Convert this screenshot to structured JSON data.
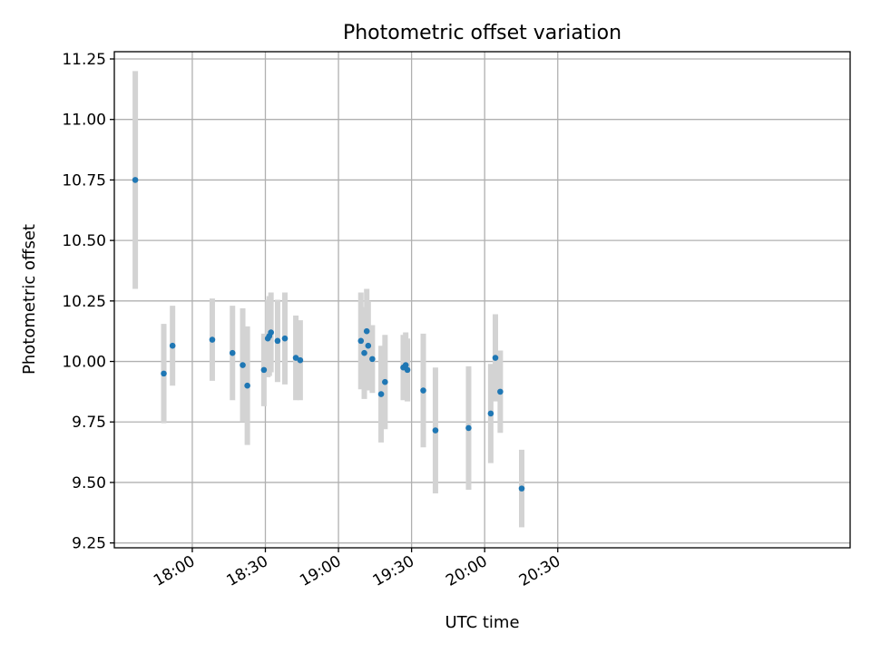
{
  "chart_data": {
    "type": "scatter",
    "title": "Photometric offset variation",
    "xlabel": "UTC time",
    "ylabel": "Photometric offset",
    "xlim_minutes": [
      1048,
      1350
    ],
    "ylim": [
      9.23,
      11.28
    ],
    "grid": true,
    "point_color": "#1f77b4",
    "errorbar_color": "#d3d3d3",
    "x_ticks": [
      {
        "minutes": 1080,
        "label": "18:00"
      },
      {
        "minutes": 1110,
        "label": "18:30"
      },
      {
        "minutes": 1140,
        "label": "19:00"
      },
      {
        "minutes": 1170,
        "label": "19:30"
      },
      {
        "minutes": 1200,
        "label": "20:00"
      },
      {
        "minutes": 1230,
        "label": "20:30"
      }
    ],
    "y_ticks": [
      {
        "value": 9.25,
        "label": "9.25"
      },
      {
        "value": 9.5,
        "label": "9.50"
      },
      {
        "value": 9.75,
        "label": "9.75"
      },
      {
        "value": 10.0,
        "label": "10.00"
      },
      {
        "value": 10.25,
        "label": "10.25"
      },
      {
        "value": 10.5,
        "label": "10.50"
      },
      {
        "value": 10.75,
        "label": "10.75"
      },
      {
        "value": 11.0,
        "label": "11.00"
      },
      {
        "value": 11.25,
        "label": "11.25"
      }
    ],
    "points": [
      {
        "t": 1056.6,
        "y": 10.75,
        "err": 0.45
      },
      {
        "t": 1068.3,
        "y": 9.95,
        "err": 0.205
      },
      {
        "t": 1071.9,
        "y": 10.065,
        "err": 0.165
      },
      {
        "t": 1088.2,
        "y": 10.09,
        "err": 0.17
      },
      {
        "t": 1096.5,
        "y": 10.035,
        "err": 0.195
      },
      {
        "t": 1100.7,
        "y": 9.985,
        "err": 0.235
      },
      {
        "t": 1102.6,
        "y": 9.9,
        "err": 0.245
      },
      {
        "t": 1109.4,
        "y": 9.965,
        "err": 0.15
      },
      {
        "t": 1111.0,
        "y": 10.095,
        "err": 0.16
      },
      {
        "t": 1111.6,
        "y": 10.105,
        "err": 0.165
      },
      {
        "t": 1112.3,
        "y": 10.12,
        "err": 0.165
      },
      {
        "t": 1115.0,
        "y": 10.085,
        "err": 0.17
      },
      {
        "t": 1118.0,
        "y": 10.095,
        "err": 0.19
      },
      {
        "t": 1122.5,
        "y": 10.015,
        "err": 0.175
      },
      {
        "t": 1124.3,
        "y": 10.005,
        "err": 0.165
      },
      {
        "t": 1149.2,
        "y": 10.085,
        "err": 0.2
      },
      {
        "t": 1150.6,
        "y": 10.035,
        "err": 0.19
      },
      {
        "t": 1151.6,
        "y": 10.125,
        "err": 0.175
      },
      {
        "t": 1152.2,
        "y": 10.065,
        "err": 0.185
      },
      {
        "t": 1153.9,
        "y": 10.01,
        "err": 0.14
      },
      {
        "t": 1157.5,
        "y": 9.865,
        "err": 0.2
      },
      {
        "t": 1159.1,
        "y": 9.915,
        "err": 0.195
      },
      {
        "t": 1166.6,
        "y": 9.975,
        "err": 0.135
      },
      {
        "t": 1167.6,
        "y": 9.985,
        "err": 0.135
      },
      {
        "t": 1168.3,
        "y": 9.965,
        "err": 0.13
      },
      {
        "t": 1174.8,
        "y": 9.88,
        "err": 0.235
      },
      {
        "t": 1179.8,
        "y": 9.715,
        "err": 0.26
      },
      {
        "t": 1193.4,
        "y": 9.725,
        "err": 0.255
      },
      {
        "t": 1202.5,
        "y": 9.785,
        "err": 0.205
      },
      {
        "t": 1204.4,
        "y": 10.015,
        "err": 0.18
      },
      {
        "t": 1206.4,
        "y": 9.875,
        "err": 0.17
      },
      {
        "t": 1215.2,
        "y": 9.475,
        "err": 0.16
      }
    ]
  }
}
